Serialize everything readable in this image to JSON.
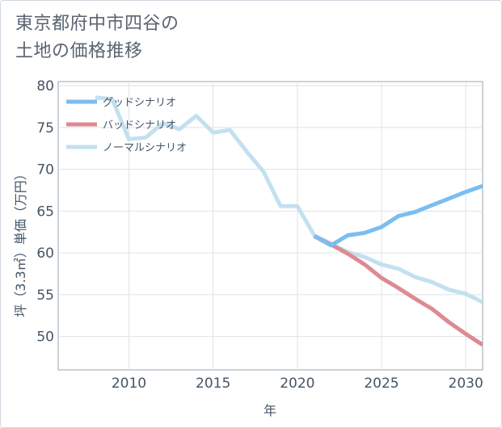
{
  "title_line1": "東京都府中市四谷の",
  "title_line2": "土地の価格推移",
  "chart_data": {
    "type": "line",
    "xlabel": "年",
    "ylabel": "坪（3.3㎡）単価（万円）",
    "xlim": [
      2005.8,
      2031
    ],
    "ylim": [
      46,
      80.5
    ],
    "xticks": [
      2010,
      2015,
      2020,
      2025,
      2030
    ],
    "yticks": [
      50,
      55,
      60,
      65,
      70,
      75,
      80
    ],
    "grid": true,
    "legend_position": "top-left",
    "series": [
      {
        "name": "グッドシナリオ",
        "color": "#7bbdf0",
        "x": [
          2021,
          2022,
          2023,
          2024,
          2025,
          2026,
          2027,
          2028,
          2029,
          2030,
          2031
        ],
        "values": [
          62.0,
          60.9,
          62.1,
          62.4,
          63.1,
          64.4,
          64.9,
          65.7,
          66.5,
          67.3,
          68.0
        ]
      },
      {
        "name": "バッドシナリオ",
        "color": "#de8a92",
        "x": [
          2021,
          2022,
          2023,
          2024,
          2025,
          2026,
          2027,
          2028,
          2029,
          2030,
          2031
        ],
        "values": [
          62.0,
          61.0,
          59.9,
          58.6,
          57.0,
          55.8,
          54.5,
          53.3,
          51.7,
          50.3,
          49.0
        ]
      },
      {
        "name": "ノーマルシナリオ",
        "color": "#c3e0ef",
        "x": [
          2008,
          2009,
          2010,
          2011,
          2012,
          2013,
          2014,
          2015,
          2016,
          2017,
          2018,
          2019,
          2020,
          2021,
          2022,
          2023,
          2024,
          2025,
          2026,
          2027,
          2028,
          2029,
          2030,
          2031
        ],
        "values": [
          78.6,
          78.4,
          73.6,
          73.8,
          75.5,
          74.8,
          76.4,
          74.4,
          74.7,
          72.1,
          69.7,
          65.6,
          65.6,
          62.1,
          61.1,
          60.1,
          59.5,
          58.6,
          58.1,
          57.1,
          56.5,
          55.6,
          55.1,
          54.1
        ]
      }
    ]
  }
}
